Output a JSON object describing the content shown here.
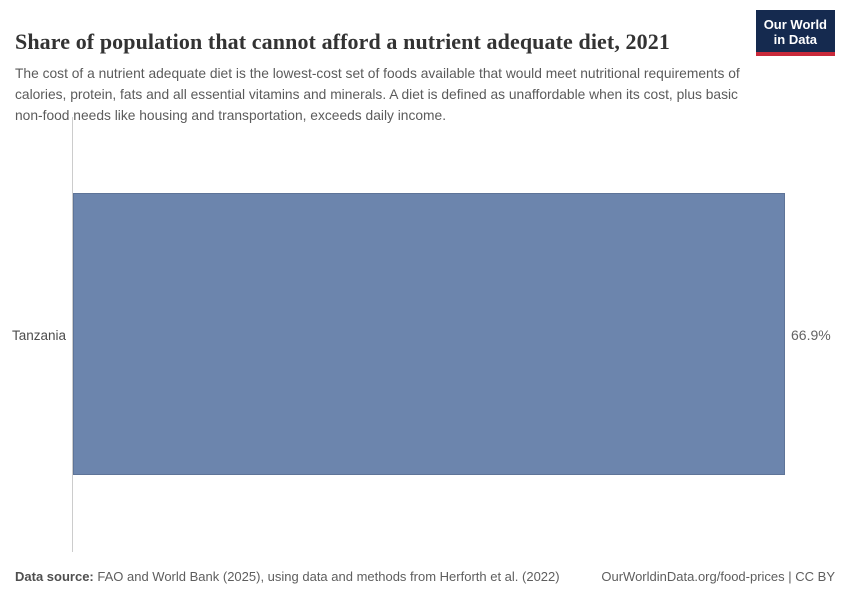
{
  "header": {
    "title": "Share of population that cannot afford a nutrient adequate diet, 2021",
    "subtitle": "The cost of a nutrient adequate diet is the lowest-cost set of foods available that would meet nutritional requirements of calories, protein, fats and all essential vitamins and minerals. A diet is defined as unaffordable when its cost, plus basic non-food needs like housing and transportation, exceeds daily income."
  },
  "logo": {
    "line1": "Our World",
    "line2": "in Data"
  },
  "chart_data": {
    "type": "bar",
    "orientation": "horizontal",
    "categories": [
      "Tanzania"
    ],
    "values": [
      66.9
    ],
    "value_labels": [
      "66.9%"
    ],
    "unit": "%",
    "title": "Share of population that cannot afford a nutrient adequate diet, 2021",
    "xlabel": "",
    "ylabel": "",
    "xlim": [
      0,
      66.9
    ],
    "grid": false,
    "legend": false
  },
  "footer": {
    "source_label": "Data source:",
    "source_text": "FAO and World Bank (2025), using data and methods from Herforth et al. (2022)",
    "link_text": "OurWorldinData.org/food-prices | CC BY"
  },
  "colors": {
    "bar": "#6c85ad",
    "axis_line": "#cccccc",
    "logo_background": "#152a4f",
    "logo_accent": "#c9293a",
    "title_text": "#333333",
    "subtitle_text": "#5b5b5b",
    "footer_text": "#5e5e5e"
  }
}
